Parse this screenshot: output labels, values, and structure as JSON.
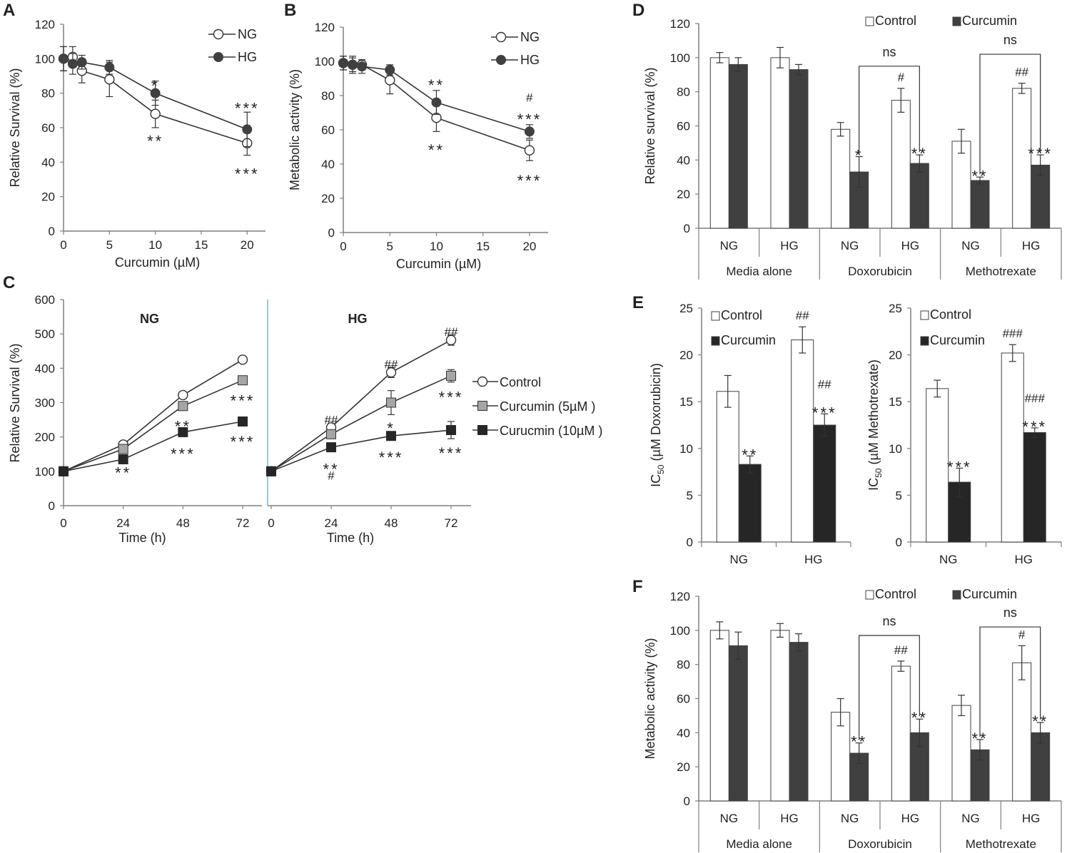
{
  "colors": {
    "axis": "#7f7f7f",
    "line": "#333333",
    "dark": "#404040",
    "darker": "#262626",
    "grey": "#a6a6a6",
    "white": "#ffffff",
    "blue_divider": "#5b9bd5"
  },
  "chart_data": [
    {
      "panel": "A",
      "type": "line",
      "ylabel": "Relative Survival (%)",
      "xlabel": "Curcumin (µM)",
      "xlim": [
        0,
        22
      ],
      "ylim": [
        0,
        120
      ],
      "xticks": [
        0,
        5,
        10,
        15,
        20
      ],
      "yticks": [
        0,
        20,
        40,
        60,
        80,
        100,
        120
      ],
      "series": [
        {
          "name": "NG",
          "marker": "open-circle",
          "x": [
            0,
            1,
            2,
            5,
            10,
            20
          ],
          "y": [
            100,
            101,
            93,
            88,
            68,
            51
          ],
          "err": [
            7,
            6,
            7,
            10,
            8,
            7
          ]
        },
        {
          "name": "HG",
          "marker": "filled-circle",
          "x": [
            0,
            1,
            2,
            5,
            10,
            20
          ],
          "y": [
            100,
            97,
            98,
            95,
            80,
            59
          ],
          "err": [
            7,
            6,
            4,
            4,
            7,
            10
          ]
        }
      ],
      "annotations": [
        {
          "text": "*",
          "x": 10,
          "y": 86,
          "kind": "star"
        },
        {
          "text": "**",
          "x": 10,
          "y": 54,
          "kind": "star"
        },
        {
          "text": "***",
          "x": 20,
          "y": 73,
          "kind": "star"
        },
        {
          "text": "***",
          "x": 20,
          "y": 35,
          "kind": "star"
        }
      ]
    },
    {
      "panel": "B",
      "type": "line",
      "ylabel": "Metabolic activity (%)",
      "xlabel": "Curcumin (µM)",
      "xlim": [
        0,
        22
      ],
      "ylim": [
        0,
        120
      ],
      "xticks": [
        0,
        5,
        10,
        15,
        20
      ],
      "yticks": [
        0,
        20,
        40,
        60,
        80,
        100,
        120
      ],
      "series": [
        {
          "name": "NG",
          "marker": "open-circle",
          "x": [
            0,
            1,
            2,
            5,
            10,
            20
          ],
          "y": [
            99,
            98,
            98,
            89,
            67,
            48
          ],
          "err": [
            4,
            4,
            3,
            8,
            8,
            6
          ]
        },
        {
          "name": "HG",
          "marker": "filled-circle",
          "x": [
            0,
            1,
            2,
            5,
            10,
            20
          ],
          "y": [
            99,
            98,
            97,
            95,
            76,
            59
          ],
          "err": [
            4,
            5,
            4,
            3,
            7,
            4
          ]
        }
      ],
      "annotations": [
        {
          "text": "**",
          "x": 10,
          "y": 88,
          "kind": "star"
        },
        {
          "text": "**",
          "x": 10,
          "y": 50,
          "kind": "star"
        },
        {
          "text": "#",
          "x": 20,
          "y": 79,
          "kind": "hash"
        },
        {
          "text": "***",
          "x": 20,
          "y": 68,
          "kind": "star"
        },
        {
          "text": "***",
          "x": 20,
          "y": 32,
          "kind": "star"
        }
      ]
    },
    {
      "panel": "C",
      "type": "line",
      "ylabel": "Relative Survival (%)",
      "xlabel": "Time (h)",
      "ylim": [
        0,
        600
      ],
      "yticks": [
        0,
        100,
        200,
        300,
        400,
        500,
        600
      ],
      "xticks": [
        0,
        24,
        48,
        72
      ],
      "subpanels": [
        {
          "title": "NG",
          "series": [
            {
              "name": "Control",
              "marker": "open-circle",
              "x": [
                0,
                24,
                48,
                72
              ],
              "y": [
                100,
                178,
                322,
                425
              ],
              "err": [
                0,
                8,
                8,
                5
              ]
            },
            {
              "name": "Curcumin (5µM )",
              "marker": "grey-square",
              "x": [
                0,
                24,
                48,
                72
              ],
              "y": [
                100,
                165,
                290,
                365
              ],
              "err": [
                0,
                8,
                10,
                8
              ]
            },
            {
              "name": "Curucmin (10µM )",
              "marker": "black-square",
              "x": [
                0,
                24,
                48,
                72
              ],
              "y": [
                100,
                135,
                214,
                245
              ],
              "err": [
                0,
                8,
                8,
                8
              ]
            }
          ],
          "annotations": [
            {
              "text": "**",
              "x": 24,
              "y": 105,
              "kind": "star"
            },
            {
              "text": "**",
              "x": 48,
              "y": 240,
              "kind": "star"
            },
            {
              "text": "***",
              "x": 48,
              "y": 160,
              "kind": "star"
            },
            {
              "text": "***",
              "x": 72,
              "y": 315,
              "kind": "star"
            },
            {
              "text": "***",
              "x": 72,
              "y": 195,
              "kind": "star"
            }
          ]
        },
        {
          "title": "HG",
          "series": [
            {
              "name": "Control",
              "marker": "open-circle",
              "x": [
                0,
                24,
                48,
                72
              ],
              "y": [
                100,
                228,
                388,
                482
              ],
              "err": [
                0,
                10,
                15,
                15
              ]
            },
            {
              "name": "Curcumin (5µM )",
              "marker": "grey-square",
              "x": [
                0,
                24,
                48,
                72
              ],
              "y": [
                100,
                208,
                300,
                378
              ],
              "err": [
                0,
                10,
                35,
                18
              ]
            },
            {
              "name": "Curucmin (10µM )",
              "marker": "black-square",
              "x": [
                0,
                24,
                48,
                72
              ],
              "y": [
                100,
                170,
                203,
                220
              ],
              "err": [
                0,
                10,
                12,
                25
              ]
            }
          ],
          "annotations": [
            {
              "text": "##",
              "x": 24,
              "y": 250,
              "kind": "hash"
            },
            {
              "text": "**",
              "x": 24,
              "y": 115,
              "kind": "star"
            },
            {
              "text": "#",
              "x": 24,
              "y": 88,
              "kind": "hash"
            },
            {
              "text": "##",
              "x": 48,
              "y": 412,
              "kind": "hash"
            },
            {
              "text": "*",
              "x": 48,
              "y": 235,
              "kind": "star"
            },
            {
              "text": "***",
              "x": 48,
              "y": 150,
              "kind": "star"
            },
            {
              "text": "##",
              "x": 72,
              "y": 507,
              "kind": "hash"
            },
            {
              "text": "***",
              "x": 72,
              "y": 325,
              "kind": "star"
            },
            {
              "text": "***",
              "x": 72,
              "y": 162,
              "kind": "star"
            }
          ]
        }
      ]
    },
    {
      "panel": "D",
      "type": "bar",
      "ylabel": "Relative survival (%)",
      "ylim": [
        0,
        120
      ],
      "yticks": [
        0,
        20,
        40,
        60,
        80,
        100,
        120
      ],
      "legend": [
        "Control",
        "Curcumin"
      ],
      "groups": [
        "Media alone",
        "Doxorubicin",
        "Methotrexate"
      ],
      "categories": [
        "NG",
        "HG",
        "NG",
        "HG",
        "NG",
        "HG"
      ],
      "series": [
        {
          "name": "Control",
          "values": [
            100,
            100,
            58,
            75,
            51,
            82
          ],
          "err": [
            3,
            6,
            4,
            7,
            7,
            3
          ]
        },
        {
          "name": "Curcumin",
          "values": [
            96,
            93,
            33,
            38,
            28,
            37
          ],
          "err": [
            4,
            3,
            9,
            5,
            2,
            6
          ]
        }
      ],
      "bar_annotations": [
        {
          "cat": 2,
          "series": 1,
          "text": "*",
          "kind": "star"
        },
        {
          "cat": 3,
          "series": 0,
          "text": "#",
          "kind": "hash"
        },
        {
          "cat": 3,
          "series": 1,
          "text": "**",
          "kind": "star"
        },
        {
          "cat": 4,
          "series": 1,
          "text": "**",
          "kind": "star"
        },
        {
          "cat": 5,
          "series": 0,
          "text": "##",
          "kind": "hash"
        },
        {
          "cat": 5,
          "series": 1,
          "text": "***",
          "kind": "star"
        }
      ],
      "brackets": [
        {
          "from": [
            2,
            1
          ],
          "to": [
            3,
            1
          ],
          "y": 95,
          "text": "ns"
        },
        {
          "from": [
            4,
            1
          ],
          "to": [
            5,
            1
          ],
          "y": 102,
          "text": "ns"
        }
      ]
    },
    {
      "panel": "E1",
      "type": "bar",
      "ylabel": "IC50 (µM Doxorubicin)",
      "ylabel_main": "IC",
      "ylabel_sub": "50",
      "ylabel_rest": " (µM Doxorubicin)",
      "ylim": [
        0,
        25
      ],
      "yticks": [
        0,
        5,
        10,
        15,
        20,
        25
      ],
      "legend": [
        "Control",
        "Curcumin"
      ],
      "categories": [
        "NG",
        "HG"
      ],
      "series": [
        {
          "name": "Control",
          "values": [
            16.1,
            21.6
          ],
          "err": [
            1.7,
            1.4
          ]
        },
        {
          "name": "Curcumin",
          "values": [
            8.3,
            12.5
          ],
          "err": [
            0.9,
            1.2
          ]
        }
      ],
      "bar_annotations": [
        {
          "cat": 0,
          "series": 1,
          "text": "**",
          "kind": "star"
        },
        {
          "cat": 1,
          "series": 0,
          "text": "##",
          "kind": "hash"
        },
        {
          "cat": 1,
          "series": 1,
          "text": "##",
          "kind": "hash-high"
        },
        {
          "cat": 1,
          "series": 1,
          "text": "***",
          "kind": "star"
        }
      ]
    },
    {
      "panel": "E2",
      "type": "bar",
      "ylabel": "IC50 (µM Methotrexate)",
      "ylabel_main": "IC",
      "ylabel_sub": "50",
      "ylabel_rest": " (µM Methotrexate)",
      "ylim": [
        0,
        25
      ],
      "yticks": [
        0,
        5,
        10,
        15,
        20,
        25
      ],
      "legend": [
        "Control",
        "Curcumin"
      ],
      "categories": [
        "NG",
        "HG"
      ],
      "series": [
        {
          "name": "Control",
          "values": [
            16.4,
            20.2
          ],
          "err": [
            0.9,
            0.9
          ]
        },
        {
          "name": "Curcumin",
          "values": [
            6.4,
            11.7
          ],
          "err": [
            1.5,
            0.5
          ]
        }
      ],
      "bar_annotations": [
        {
          "cat": 0,
          "series": 1,
          "text": "***",
          "kind": "star"
        },
        {
          "cat": 1,
          "series": 0,
          "text": "###",
          "kind": "hash"
        },
        {
          "cat": 1,
          "series": 1,
          "text": "###",
          "kind": "hash-high"
        },
        {
          "cat": 1,
          "series": 1,
          "text": "***",
          "kind": "star"
        }
      ]
    },
    {
      "panel": "F",
      "type": "bar",
      "ylabel": "Metabolic activity (%)",
      "ylim": [
        0,
        120
      ],
      "yticks": [
        0,
        20,
        40,
        60,
        80,
        100,
        120
      ],
      "legend": [
        "Control",
        "Curcumin"
      ],
      "groups": [
        "Media alone",
        "Doxorubicin",
        "Methotrexate"
      ],
      "categories": [
        "NG",
        "HG",
        "NG",
        "HG",
        "NG",
        "HG"
      ],
      "series": [
        {
          "name": "Control",
          "values": [
            100,
            100,
            52,
            79,
            56,
            81
          ],
          "err": [
            5,
            4,
            8,
            3,
            6,
            10
          ]
        },
        {
          "name": "Curcumin",
          "values": [
            91,
            93,
            28,
            40,
            30,
            40
          ],
          "err": [
            8,
            5,
            6,
            8,
            6,
            6
          ]
        }
      ],
      "bar_annotations": [
        {
          "cat": 2,
          "series": 1,
          "text": "**",
          "kind": "star"
        },
        {
          "cat": 3,
          "series": 0,
          "text": "##",
          "kind": "hash"
        },
        {
          "cat": 3,
          "series": 1,
          "text": "**",
          "kind": "star"
        },
        {
          "cat": 4,
          "series": 1,
          "text": "**",
          "kind": "star"
        },
        {
          "cat": 5,
          "series": 0,
          "text": "#",
          "kind": "hash"
        },
        {
          "cat": 5,
          "series": 1,
          "text": "**",
          "kind": "star"
        }
      ],
      "brackets": [
        {
          "from": [
            2,
            1
          ],
          "to": [
            3,
            1
          ],
          "y": 97,
          "text": "ns"
        },
        {
          "from": [
            4,
            1
          ],
          "to": [
            5,
            1
          ],
          "y": 102,
          "text": "ns"
        }
      ]
    }
  ]
}
